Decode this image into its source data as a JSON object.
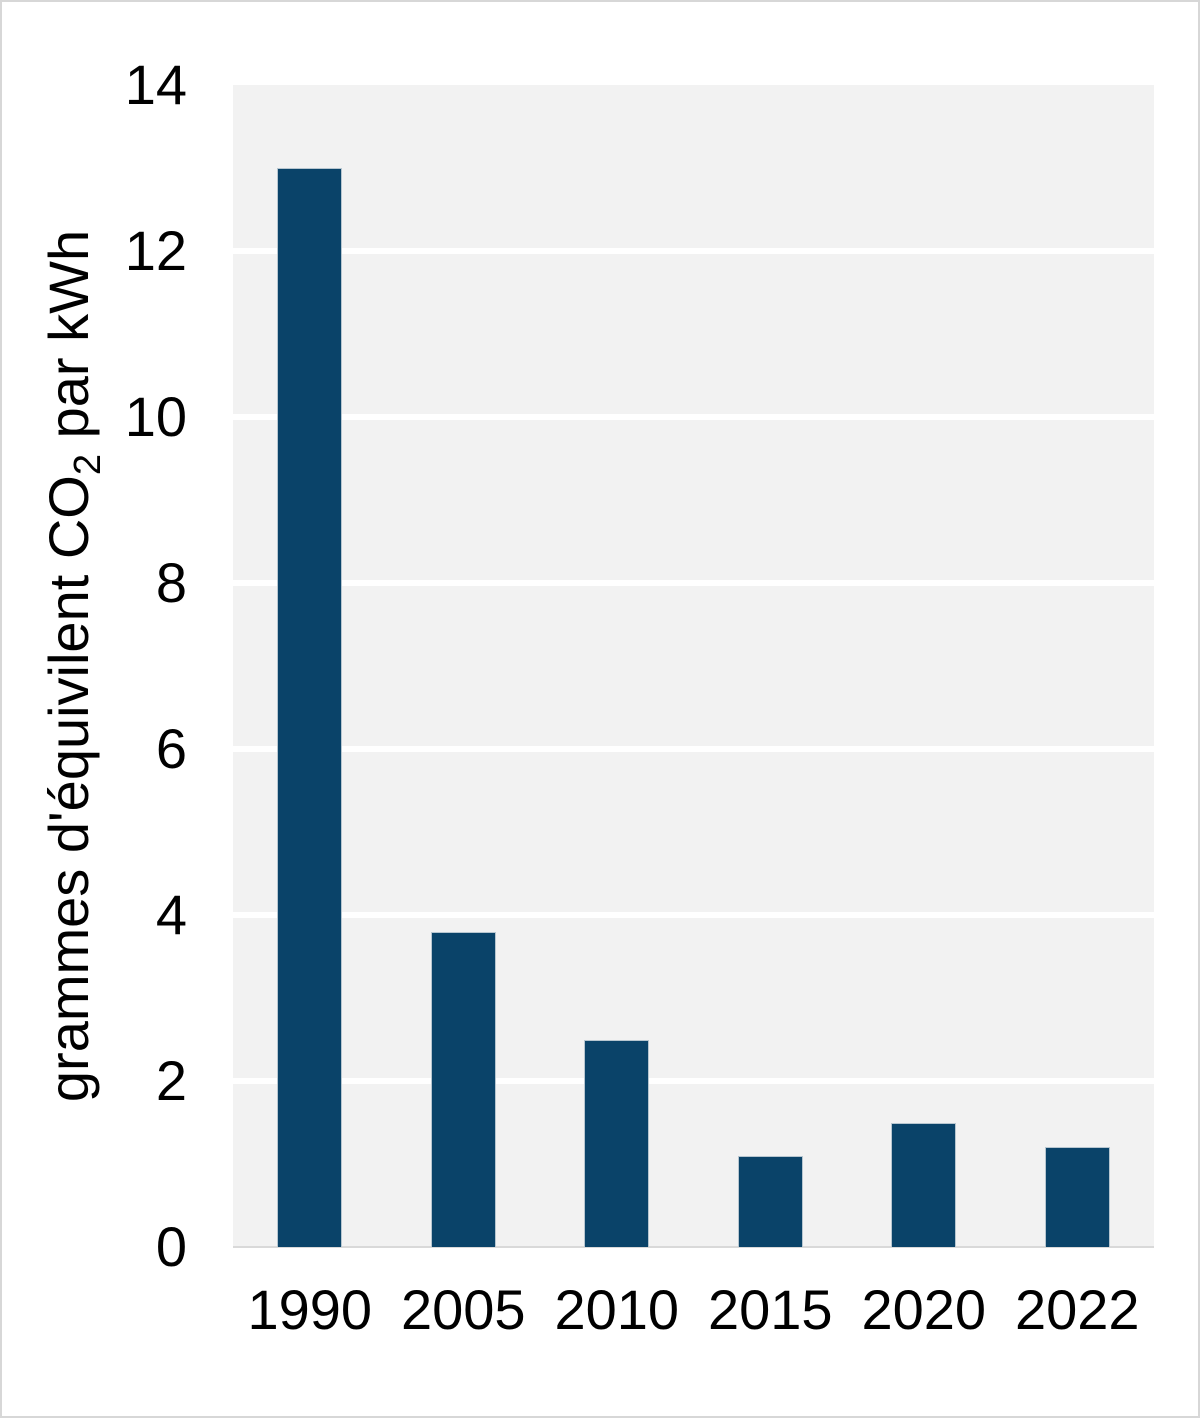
{
  "chart_data": {
    "type": "bar",
    "title": "",
    "categories": [
      "1990",
      "2005",
      "2010",
      "2015",
      "2020",
      "2022"
    ],
    "values": [
      13.0,
      3.8,
      2.5,
      1.1,
      1.5,
      1.2
    ],
    "series": [
      {
        "name": "grammes d'équivilent CO2 par kWh",
        "values": [
          13.0,
          3.8,
          2.5,
          1.1,
          1.5,
          1.2
        ]
      }
    ],
    "xlabel": "",
    "ylabel": "grammes d'équivilent CO₂ par kWh",
    "ylabel_prefix": "grammes d'équivilent CO",
    "ylabel_sub": "2",
    "ylabel_suffix": " par kWh",
    "ylim": [
      0,
      14
    ],
    "yticks": [
      0,
      2,
      4,
      6,
      8,
      10,
      12,
      14
    ],
    "grid": "horizontal white gridlines at each y tick",
    "legend": "none",
    "colors": {
      "bar": "#0a4369",
      "bar_border": "#b7c6d0",
      "plot_background": "#f2f2f2",
      "gridline": "#ffffff",
      "axis_line": "#d9d9d9",
      "text": "#000000",
      "figure_border": "#d7d7d7",
      "background": "#ffffff"
    }
  }
}
